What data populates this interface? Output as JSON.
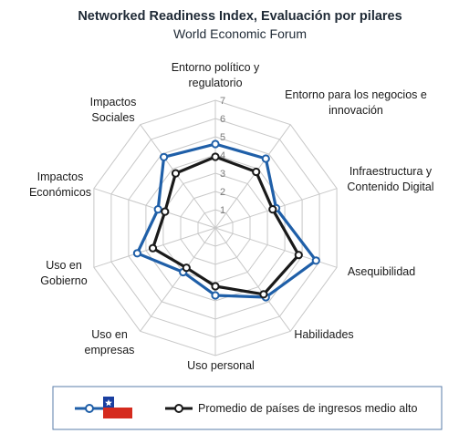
{
  "chart_data": {
    "type": "radar",
    "title": "Networked Readiness Index, Evaluación por pilares",
    "subtitle": "World Economic Forum",
    "categories": [
      [
        "Entorno político y",
        "regulatorio"
      ],
      [
        "Entorno para los negocios e",
        "innovación"
      ],
      [
        "Infraestructura y",
        "Contenido Digital"
      ],
      [
        "Asequibilidad"
      ],
      [
        "Habilidades"
      ],
      [
        "Uso personal"
      ],
      [
        "Uso en",
        "empresas"
      ],
      [
        "Uso en",
        "Gobierno"
      ],
      [
        "Impactos",
        "Económicos"
      ],
      [
        "Impactos",
        "Sociales"
      ]
    ],
    "rlim": [
      0,
      7
    ],
    "ticks": [
      "1",
      "2",
      "3",
      "4",
      "5",
      "6",
      "7"
    ],
    "series": [
      {
        "name": "",
        "legend_icon": "chile-flag-icon",
        "color": "#1f5fa8",
        "values": [
          4.6,
          4.7,
          3.5,
          5.8,
          4.7,
          3.7,
          3.0,
          4.5,
          3.3,
          4.8
        ]
      },
      {
        "name": "Promedio de países de ingresos medio alto",
        "color": "#1a1a1a",
        "values": [
          3.9,
          3.8,
          3.3,
          4.8,
          4.5,
          3.2,
          2.7,
          3.6,
          2.9,
          3.7
        ]
      }
    ],
    "grid": true,
    "legend_position": "bottom"
  },
  "colors": {
    "grid": "#c8c8c8",
    "flag_blue": "#1a3fa0",
    "flag_red": "#d52b1e",
    "flag_white": "#ffffff"
  }
}
